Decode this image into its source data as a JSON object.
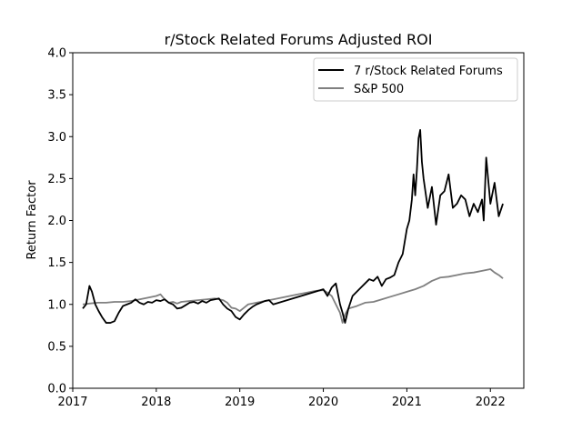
{
  "chart_data": {
    "type": "line",
    "title": "r/Stock Related Forums Adjusted ROI",
    "xlabel": "",
    "ylabel": "Return Factor",
    "xlim": [
      2017.0,
      2022.4
    ],
    "ylim": [
      0.0,
      4.0
    ],
    "xticks": [
      2017,
      2018,
      2019,
      2020,
      2021,
      2022
    ],
    "xtick_labels": [
      "2017",
      "2018",
      "2019",
      "2020",
      "2021",
      "2022"
    ],
    "yticks": [
      0.0,
      0.5,
      1.0,
      1.5,
      2.0,
      2.5,
      3.0,
      3.5,
      4.0
    ],
    "ytick_labels": [
      "0.0",
      "0.5",
      "1.0",
      "1.5",
      "2.0",
      "2.5",
      "3.0",
      "3.5",
      "4.0"
    ],
    "grid": false,
    "legend_position": "top-right",
    "series": [
      {
        "name": "7 r/Stock Related Forums",
        "color": "#000000",
        "x": [
          2017.12,
          2017.16,
          2017.2,
          2017.23,
          2017.27,
          2017.31,
          2017.35,
          2017.4,
          2017.45,
          2017.5,
          2017.55,
          2017.6,
          2017.65,
          2017.7,
          2017.75,
          2017.8,
          2017.85,
          2017.9,
          2017.95,
          2018.0,
          2018.05,
          2018.1,
          2018.15,
          2018.2,
          2018.25,
          2018.3,
          2018.35,
          2018.4,
          2018.45,
          2018.5,
          2018.55,
          2018.6,
          2018.65,
          2018.7,
          2018.75,
          2018.8,
          2018.85,
          2018.9,
          2018.95,
          2019.0,
          2019.05,
          2019.1,
          2019.15,
          2019.2,
          2019.25,
          2019.3,
          2019.35,
          2019.4,
          2020.0,
          2020.05,
          2020.1,
          2020.15,
          2020.2,
          2020.23,
          2020.26,
          2020.3,
          2020.35,
          2020.4,
          2020.45,
          2020.5,
          2020.55,
          2020.6,
          2020.65,
          2020.7,
          2020.75,
          2020.8,
          2020.85,
          2020.9,
          2020.95,
          2021.0,
          2021.03,
          2021.06,
          2021.08,
          2021.1,
          2021.12,
          2021.14,
          2021.16,
          2021.18,
          2021.2,
          2021.25,
          2021.3,
          2021.35,
          2021.4,
          2021.45,
          2021.5,
          2021.55,
          2021.6,
          2021.65,
          2021.7,
          2021.75,
          2021.8,
          2021.85,
          2021.9,
          2021.92,
          2021.95,
          2022.0,
          2022.05,
          2022.1,
          2022.15
        ],
        "y": [
          0.95,
          1.0,
          1.22,
          1.15,
          1.0,
          0.92,
          0.85,
          0.78,
          0.78,
          0.8,
          0.9,
          0.98,
          1.0,
          1.02,
          1.06,
          1.02,
          1.0,
          1.03,
          1.02,
          1.05,
          1.04,
          1.06,
          1.02,
          1.0,
          0.95,
          0.96,
          0.99,
          1.02,
          1.03,
          1.01,
          1.04,
          1.02,
          1.05,
          1.06,
          1.07,
          1.0,
          0.95,
          0.92,
          0.85,
          0.82,
          0.88,
          0.93,
          0.97,
          1.0,
          1.02,
          1.04,
          1.05,
          1.0,
          1.18,
          1.1,
          1.2,
          1.25,
          1.0,
          0.9,
          0.78,
          0.95,
          1.1,
          1.15,
          1.2,
          1.25,
          1.3,
          1.28,
          1.33,
          1.22,
          1.3,
          1.32,
          1.35,
          1.5,
          1.6,
          1.9,
          2.0,
          2.25,
          2.55,
          2.3,
          2.6,
          2.98,
          3.08,
          2.7,
          2.5,
          2.15,
          2.4,
          1.95,
          2.3,
          2.35,
          2.55,
          2.15,
          2.2,
          2.3,
          2.25,
          2.05,
          2.2,
          2.1,
          2.25,
          2.0,
          2.75,
          2.2,
          2.45,
          2.05,
          2.2
        ]
      },
      {
        "name": "S&P 500",
        "color": "#808080",
        "x": [
          2017.12,
          2017.2,
          2017.3,
          2017.4,
          2017.5,
          2017.6,
          2017.7,
          2017.8,
          2017.9,
          2018.0,
          2018.05,
          2018.1,
          2018.15,
          2018.2,
          2018.25,
          2018.3,
          2018.4,
          2018.5,
          2018.6,
          2018.7,
          2018.8,
          2018.85,
          2018.9,
          2018.95,
          2019.0,
          2019.05,
          2019.1,
          2019.2,
          2019.3,
          2019.4,
          2019.5,
          2019.6,
          2019.7,
          2019.8,
          2019.9,
          2020.0,
          2020.05,
          2020.1,
          2020.15,
          2020.2,
          2020.23,
          2020.26,
          2020.3,
          2020.4,
          2020.5,
          2020.6,
          2020.7,
          2020.8,
          2020.9,
          2021.0,
          2021.1,
          2021.2,
          2021.3,
          2021.4,
          2021.5,
          2021.6,
          2021.7,
          2021.8,
          2021.9,
          2022.0,
          2022.05,
          2022.1,
          2022.15
        ],
        "y": [
          1.0,
          1.01,
          1.02,
          1.02,
          1.03,
          1.03,
          1.04,
          1.06,
          1.08,
          1.1,
          1.12,
          1.06,
          1.02,
          1.03,
          1.01,
          1.03,
          1.04,
          1.05,
          1.06,
          1.07,
          1.05,
          1.02,
          0.96,
          0.95,
          0.92,
          0.96,
          1.0,
          1.02,
          1.04,
          1.06,
          1.08,
          1.1,
          1.12,
          1.14,
          1.16,
          1.17,
          1.14,
          1.1,
          1.0,
          0.9,
          0.78,
          0.88,
          0.95,
          0.98,
          1.02,
          1.03,
          1.06,
          1.09,
          1.12,
          1.15,
          1.18,
          1.22,
          1.28,
          1.32,
          1.33,
          1.35,
          1.37,
          1.38,
          1.4,
          1.42,
          1.38,
          1.35,
          1.31
        ]
      }
    ]
  }
}
